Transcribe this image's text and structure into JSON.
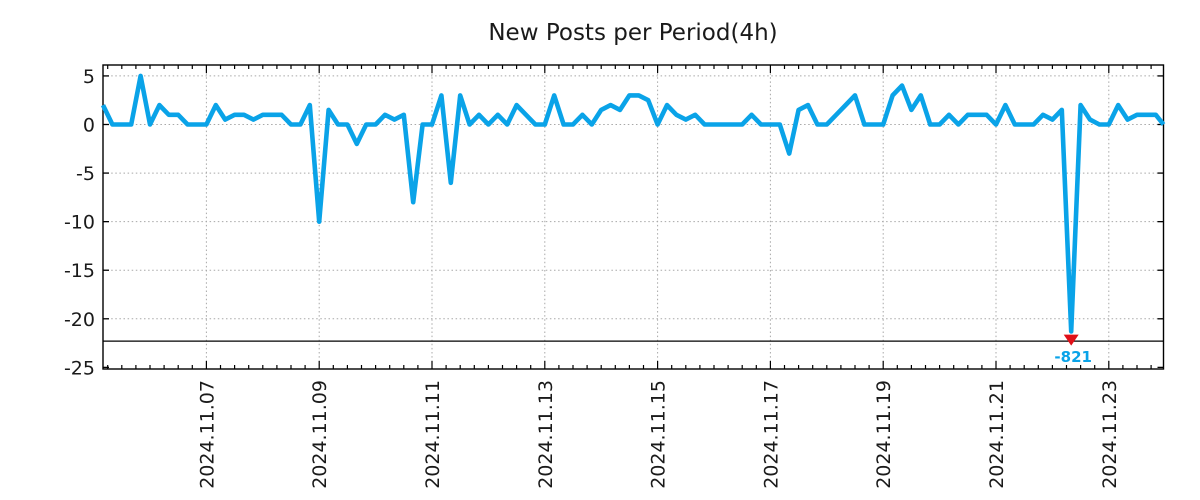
{
  "chart_data": {
    "type": "line",
    "title": "New Posts per Period(4h)",
    "grid": true,
    "legend": false,
    "period_hours": 4,
    "x_axis": {
      "tick_labels": [
        "2024.11.07",
        "2024.11.09",
        "2024.11.11",
        "2024.11.13",
        "2024.11.15",
        "2024.11.17",
        "2024.11.19",
        "2024.11.21",
        "2024.11.23"
      ],
      "first_label_period_index": 11,
      "periods_per_label_step": 12,
      "minor_tick_hours": 6,
      "label_rotation_deg": 90
    },
    "y_axis": {
      "ticks": [
        5,
        0,
        -5,
        -10,
        -15,
        -20,
        -25
      ],
      "ylim": [
        -25.2,
        6.1
      ]
    },
    "values": [
      2,
      0,
      0,
      0,
      5,
      0,
      2,
      1,
      1,
      0,
      0,
      0,
      2,
      0.5,
      1,
      1,
      0.5,
      1,
      1,
      1,
      0,
      0,
      2,
      -10,
      1.5,
      0,
      0,
      -2,
      0,
      0,
      1,
      0.5,
      1,
      -8,
      0,
      0,
      3,
      -6,
      3,
      0,
      1,
      0,
      1,
      0,
      2,
      1,
      0,
      0,
      3,
      0,
      0,
      1,
      0,
      1.5,
      2,
      1.5,
      3,
      3,
      2.5,
      0,
      2,
      1,
      0.5,
      1,
      0,
      0,
      0,
      0,
      0,
      1,
      0,
      0,
      0,
      -3,
      1.5,
      2,
      0,
      0,
      1,
      2,
      3,
      0,
      0,
      0,
      3,
      4,
      1.5,
      3,
      0,
      0,
      1,
      0,
      1,
      1,
      1,
      0,
      2,
      0,
      0,
      0,
      1,
      0.5,
      1.5,
      -821,
      2,
      0.5,
      0,
      0,
      2,
      0.5,
      1,
      1,
      1,
      0
    ],
    "clipped_point": {
      "index": 103,
      "actual_value": -821,
      "display_clip_min": -21.3,
      "marker": "triangle-down",
      "annotation_text": "-821"
    },
    "threshold_line_value": -22.3,
    "colors": {
      "line": "#0aa3e8",
      "marker": "#e01018",
      "grid": "#a8a8a8",
      "axis": "#000000",
      "text": "#1a1a1a"
    }
  }
}
